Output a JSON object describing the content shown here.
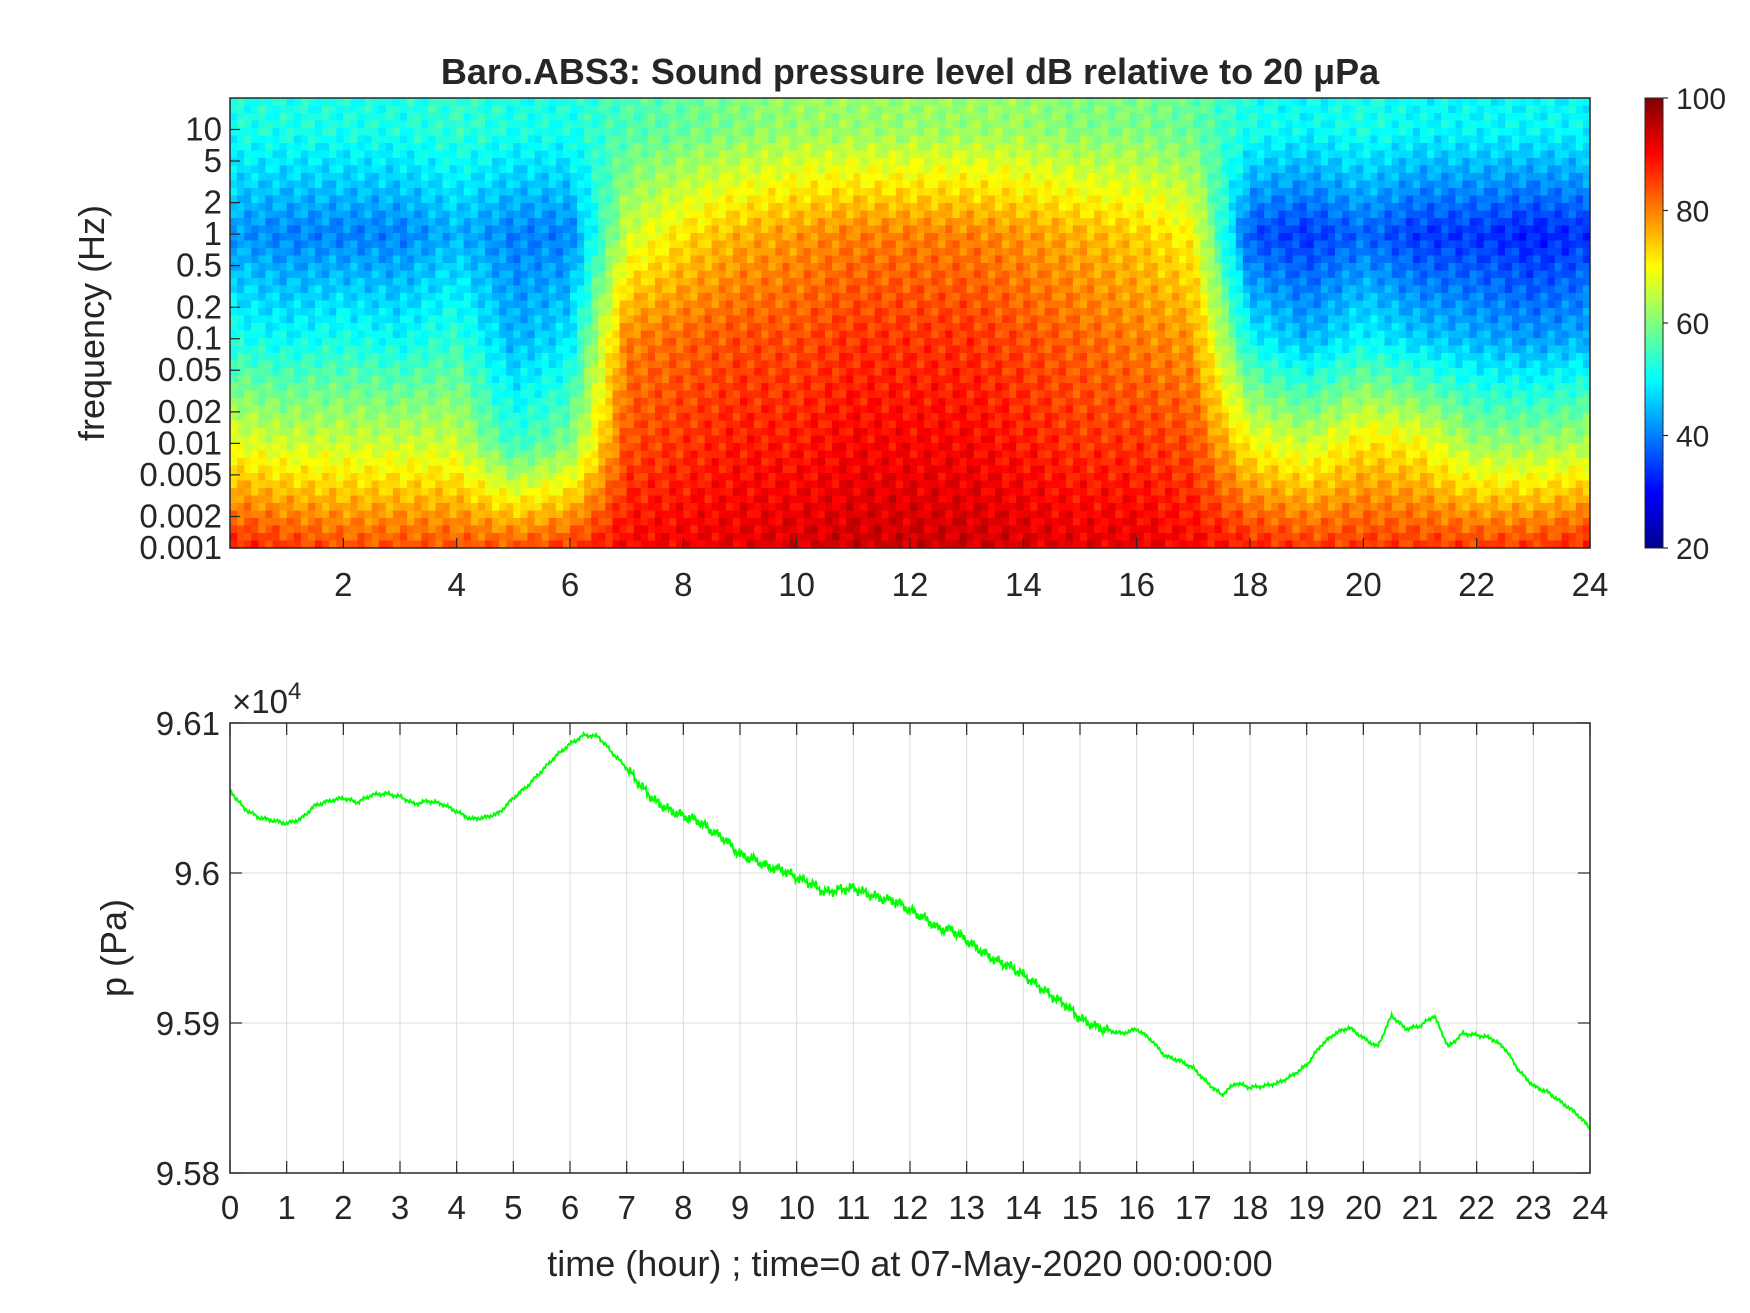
{
  "chart_data": [
    {
      "type": "heatmap",
      "title": "Baro.ABS3: Sound pressure level dB relative to 20 μPa",
      "ylabel": "frequency (Hz)",
      "xlabel": "",
      "x_ticks": [
        2,
        4,
        6,
        8,
        10,
        12,
        14,
        16,
        18,
        20,
        22,
        24
      ],
      "x_tick_labels": [
        "2",
        "4",
        "6",
        "8",
        "10",
        "12",
        "14",
        "16",
        "18",
        "20",
        "22",
        "24"
      ],
      "xlim": [
        0,
        24
      ],
      "y_scale": "log",
      "ylim": [
        0.001,
        20
      ],
      "y_ticks": [
        0.001,
        0.002,
        0.005,
        0.01,
        0.02,
        0.05,
        0.1,
        0.2,
        0.5,
        1,
        2,
        5,
        10
      ],
      "y_tick_labels": [
        "0.001",
        "0.002",
        "0.005",
        "0.01",
        "0.02",
        "0.05",
        "0.1",
        "0.2",
        "0.5",
        "1",
        "2",
        "5",
        "10"
      ],
      "colormap": "jet",
      "colorbar": {
        "range": [
          20,
          100
        ],
        "ticks": [
          20,
          40,
          60,
          80,
          100
        ],
        "tick_labels": [
          "20",
          "40",
          "60",
          "80",
          "100"
        ]
      },
      "hours": [
        0,
        1,
        2,
        3,
        4,
        5,
        6,
        7,
        8,
        9,
        10,
        11,
        12,
        13,
        14,
        15,
        16,
        17,
        18,
        19,
        20,
        21,
        22,
        23,
        24
      ],
      "level_at_0.001Hz_dB": [
        88,
        86,
        84,
        84,
        84,
        84,
        86,
        90,
        91,
        92,
        93,
        94,
        94,
        94,
        93,
        92,
        92,
        90,
        88,
        86,
        86,
        86,
        86,
        86,
        88
      ],
      "level_at_0.01Hz_dB": [
        68,
        66,
        66,
        66,
        66,
        54,
        60,
        84,
        86,
        88,
        88,
        90,
        90,
        90,
        88,
        86,
        86,
        84,
        70,
        66,
        72,
        70,
        62,
        62,
        64
      ],
      "level_at_0.1Hz_dB": [
        52,
        50,
        52,
        50,
        54,
        44,
        48,
        80,
        82,
        84,
        84,
        86,
        86,
        86,
        84,
        82,
        80,
        78,
        50,
        44,
        50,
        46,
        44,
        42,
        44
      ],
      "level_at_1Hz_dB": [
        42,
        40,
        40,
        40,
        44,
        40,
        40,
        66,
        72,
        76,
        78,
        80,
        80,
        80,
        78,
        76,
        74,
        70,
        36,
        34,
        38,
        34,
        34,
        32,
        34
      ],
      "level_at_10Hz_dB": [
        52,
        52,
        52,
        52,
        54,
        52,
        52,
        56,
        58,
        60,
        62,
        62,
        62,
        62,
        62,
        60,
        60,
        58,
        52,
        50,
        52,
        50,
        50,
        50,
        50
      ],
      "grid": false
    },
    {
      "type": "line",
      "title": "",
      "xlabel": "time (hour) ; time=0 at 07-May-2020 00:00:00",
      "ylabel": "p (Pa)",
      "exponent_label": "×10",
      "exponent_power": "4",
      "xlim": [
        0,
        24
      ],
      "ylim": [
        95800,
        96100
      ],
      "x_ticks": [
        0,
        1,
        2,
        3,
        4,
        5,
        6,
        7,
        8,
        9,
        10,
        11,
        12,
        13,
        14,
        15,
        16,
        17,
        18,
        19,
        20,
        21,
        22,
        23,
        24
      ],
      "x_tick_labels": [
        "0",
        "1",
        "2",
        "3",
        "4",
        "5",
        "6",
        "7",
        "8",
        "9",
        "10",
        "11",
        "12",
        "13",
        "14",
        "15",
        "16",
        "17",
        "18",
        "19",
        "20",
        "21",
        "22",
        "23",
        "24"
      ],
      "y_ticks": [
        95800,
        95900,
        96000,
        96100
      ],
      "y_tick_labels": [
        "9.58",
        "9.59",
        "9.6",
        "9.61"
      ],
      "grid": true,
      "series": [
        {
          "color": "#00ff00",
          "x": [
            0,
            0.25,
            0.5,
            0.75,
            1,
            1.25,
            1.5,
            1.75,
            2,
            2.25,
            2.5,
            2.75,
            3,
            3.25,
            3.5,
            3.75,
            4,
            4.25,
            4.5,
            4.75,
            5,
            5.25,
            5.5,
            5.75,
            6,
            6.25,
            6.5,
            6.75,
            7,
            7.25,
            7.5,
            7.75,
            8,
            8.25,
            8.5,
            8.75,
            9,
            9.25,
            9.5,
            9.75,
            10,
            10.25,
            10.5,
            10.75,
            11,
            11.25,
            11.5,
            11.75,
            12,
            12.25,
            12.5,
            12.75,
            13,
            13.25,
            13.5,
            13.75,
            14,
            14.25,
            14.5,
            14.75,
            15,
            15.25,
            15.5,
            15.75,
            16,
            16.25,
            16.5,
            16.75,
            17,
            17.25,
            17.5,
            17.75,
            18,
            18.25,
            18.5,
            18.75,
            19,
            19.25,
            19.5,
            19.75,
            20,
            20.25,
            20.5,
            20.75,
            21,
            21.25,
            21.5,
            21.75,
            22,
            22.25,
            22.5,
            22.75,
            23,
            23.25,
            23.5,
            23.75,
            24
          ],
          "y": [
            96055,
            96043,
            96037,
            96035,
            96033,
            96036,
            96045,
            96048,
            96050,
            96047,
            96052,
            96053,
            96051,
            96046,
            96048,
            96046,
            96041,
            96036,
            96037,
            96040,
            96050,
            96058,
            96068,
            96078,
            96086,
            96092,
            96091,
            96080,
            96070,
            96058,
            96048,
            96042,
            96038,
            96035,
            96028,
            96022,
            96012,
            96009,
            96004,
            96002,
            95997,
            95993,
            95987,
            95989,
            95990,
            95986,
            95983,
            95981,
            95975,
            95970,
            95963,
            95962,
            95955,
            95948,
            95942,
            95938,
            95932,
            95925,
            95918,
            95912,
            95903,
            95898,
            95895,
            95893,
            95896,
            95889,
            95878,
            95875,
            95870,
            95860,
            95852,
            95860,
            95857,
            95858,
            95860,
            95865,
            95872,
            95885,
            95893,
            95897,
            95890,
            95884,
            95905,
            95896,
            95898,
            95905,
            95884,
            95893,
            95892,
            95890,
            95883,
            95868,
            95858,
            95854,
            95847,
            95840,
            95830
          ]
        }
      ]
    }
  ]
}
